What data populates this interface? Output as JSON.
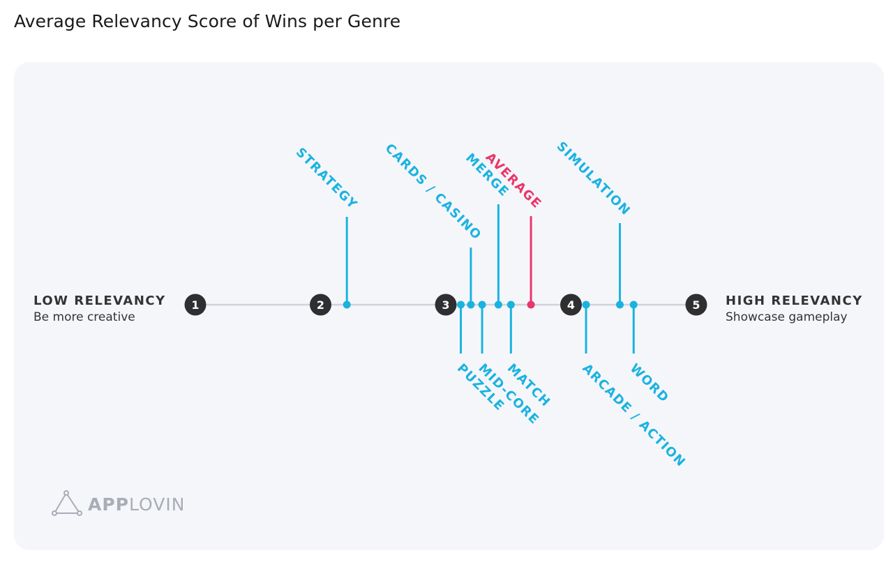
{
  "title": "Average Relevancy Score of Wins per Genre",
  "colors": {
    "genre": "#1ab3e0",
    "average": "#e8376b",
    "axis_line": "#cfd2d8",
    "tick_circle": "#2f2f31",
    "panel": "#f5f6fa"
  },
  "axis": {
    "left_title": "LOW RELEVANCY",
    "left_subtitle": "Be more creative",
    "right_title": "HIGH RELEVANCY",
    "right_subtitle": "Showcase gameplay"
  },
  "logo": {
    "name": "applovin-logo-icon",
    "text_bold": "APP",
    "text_light": "LOVIN"
  },
  "chart_data": {
    "type": "scatter",
    "title": "Average Relevancy Score of Wins per Genre",
    "xlim": [
      1,
      5
    ],
    "ticks": [
      "1",
      "2",
      "3",
      "4",
      "5"
    ],
    "grid": false,
    "points": [
      {
        "label": "STRATEGY",
        "value": 2.21,
        "side": "above",
        "highlight": false
      },
      {
        "label": "PUZZLE",
        "value": 3.12,
        "side": "below",
        "highlight": false
      },
      {
        "label": "CARDS / CASINO",
        "value": 3.2,
        "side": "above",
        "highlight": false
      },
      {
        "label": "MID-CORE",
        "value": 3.29,
        "side": "below",
        "highlight": false
      },
      {
        "label": "MERGE",
        "value": 3.42,
        "side": "above",
        "highlight": false
      },
      {
        "label": "MATCH",
        "value": 3.52,
        "side": "below",
        "highlight": false
      },
      {
        "label": "AVERAGE",
        "value": 3.68,
        "side": "above",
        "highlight": true
      },
      {
        "label": "ARCADE / ACTION",
        "value": 4.12,
        "side": "below",
        "highlight": false
      },
      {
        "label": "SIMULATION",
        "value": 4.39,
        "side": "above",
        "highlight": false
      },
      {
        "label": "WORD",
        "value": 4.5,
        "side": "below",
        "highlight": false
      }
    ]
  }
}
